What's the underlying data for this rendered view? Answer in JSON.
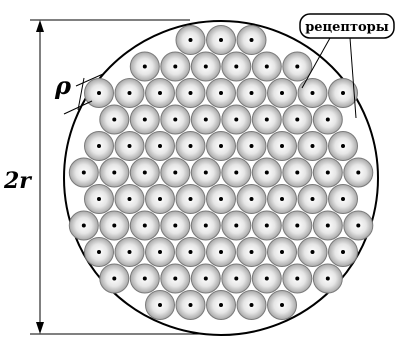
{
  "labels": {
    "diameter": "2r",
    "spacing": "ρ",
    "receptors": "рецепторы"
  },
  "colors": {
    "outline": "#000000",
    "cell_rim": "#7a7a7a",
    "cell_center": "#ffffff",
    "cell_edge": "#b3b3b3",
    "dot": "#000000"
  }
}
